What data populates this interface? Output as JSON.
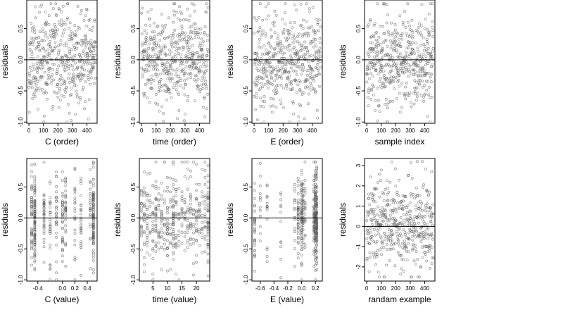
{
  "figure": {
    "background": "#ffffff",
    "point_color": "#555555",
    "line_color": "#000000"
  },
  "chart_data": [
    {
      "type": "scatter",
      "xlabel": "C (order)",
      "ylabel": "residuals",
      "xlim": [
        -15,
        470
      ],
      "ylim": [
        -1.02,
        0.96
      ],
      "xticks": [
        0,
        100,
        200,
        300,
        400
      ],
      "xticklabels": [
        "0",
        "100",
        "200",
        "300",
        "400"
      ],
      "yticks": [
        -1.0,
        -0.5,
        0.0,
        0.5
      ],
      "yticklabels": [
        "-1.0",
        "-0.5",
        "0.0",
        "0.5"
      ],
      "hline": 0,
      "n_points": 460,
      "x_pattern": "index",
      "y_min": -1.0,
      "y_max": 0.9,
      "seed": 11,
      "grid": false
    },
    {
      "type": "scatter",
      "xlabel": "time (order)",
      "ylabel": "residuals",
      "xlim": [
        -15,
        470
      ],
      "ylim": [
        -1.02,
        0.96
      ],
      "xticks": [
        0,
        100,
        200,
        300,
        400
      ],
      "xticklabels": [
        "0",
        "100",
        "200",
        "300",
        "400"
      ],
      "yticks": [
        -1.0,
        -0.5,
        0.0,
        0.5
      ],
      "yticklabels": [
        "-1.0",
        "-0.5",
        "0.0",
        "0.5"
      ],
      "hline": 0,
      "n_points": 460,
      "x_pattern": "index",
      "y_min": -1.0,
      "y_max": 0.9,
      "seed": 23,
      "grid": false
    },
    {
      "type": "scatter",
      "xlabel": "E (order)",
      "ylabel": "residuals",
      "xlim": [
        -15,
        470
      ],
      "ylim": [
        -1.02,
        0.96
      ],
      "xticks": [
        0,
        100,
        200,
        300,
        400
      ],
      "xticklabels": [
        "0",
        "100",
        "200",
        "300",
        "400"
      ],
      "yticks": [
        -1.0,
        -0.5,
        0.0,
        0.5
      ],
      "yticklabels": [
        "-1.0",
        "-0.5",
        "0.0",
        "0.5"
      ],
      "hline": 0,
      "n_points": 460,
      "x_pattern": "index",
      "y_min": -1.0,
      "y_max": 0.9,
      "seed": 37,
      "grid": false
    },
    {
      "type": "scatter",
      "xlabel": "sample index",
      "ylabel": "residuals",
      "xlim": [
        -15,
        470
      ],
      "ylim": [
        -1.02,
        0.96
      ],
      "xticks": [
        0,
        100,
        200,
        300,
        400
      ],
      "xticklabels": [
        "0",
        "100",
        "200",
        "300",
        "400"
      ],
      "yticks": [
        -1.0,
        -0.5,
        0.0,
        0.5
      ],
      "yticklabels": [
        "-1.0",
        "-0.5",
        "0.0",
        "0.5"
      ],
      "hline": 0,
      "n_points": 460,
      "x_pattern": "index",
      "y_min": -1.0,
      "y_max": 0.9,
      "seed": 41,
      "grid": false
    },
    {
      "type": "scatter",
      "xlabel": "C (value)",
      "ylabel": "residuals",
      "xlim": [
        -0.58,
        0.56
      ],
      "ylim": [
        -1.02,
        0.96
      ],
      "xticks": [
        -0.4,
        0.0,
        0.2,
        0.4
      ],
      "xticklabels": [
        "-0.4",
        "0.0",
        "0.2",
        "0.4"
      ],
      "yticks": [
        -1.0,
        -0.5,
        0.0,
        0.5
      ],
      "yticklabels": [
        "-1.0",
        "-0.5",
        "0.0",
        "0.5"
      ],
      "hline": 0,
      "n_points": 460,
      "x_pattern": "discrete",
      "x_levels": [
        -0.5,
        -0.45,
        -0.3,
        -0.2,
        -0.1,
        0.0,
        0.05,
        0.2,
        0.3,
        0.45,
        0.5
      ],
      "x_weights": [
        1,
        3,
        1,
        1,
        1,
        1,
        1,
        1,
        1,
        1,
        3
      ],
      "y_min": -1.0,
      "y_max": 0.9,
      "seed": 53,
      "grid": false
    },
    {
      "type": "scatter",
      "xlabel": "time (value)",
      "ylabel": "residuals",
      "xlim": [
        0.3,
        24.6
      ],
      "ylim": [
        -1.02,
        0.96
      ],
      "xticks": [
        5,
        10,
        15,
        20
      ],
      "xticklabels": [
        "5",
        "10",
        "15",
        "20"
      ],
      "yticks": [
        -1.0,
        -0.5,
        0.0,
        0.5
      ],
      "yticklabels": [
        "-1.0",
        "-0.5",
        "0.0",
        "0.5"
      ],
      "hline": 0,
      "n_points": 460,
      "x_pattern": "discrete",
      "x_levels": [
        1,
        2,
        3,
        4,
        5,
        6,
        7,
        8,
        9,
        10,
        11,
        12,
        13,
        14,
        15,
        16,
        17,
        18,
        19,
        20,
        21,
        22,
        23,
        24
      ],
      "x_weights": [
        1,
        1,
        1,
        1,
        1,
        1,
        1,
        1,
        1,
        1,
        1,
        3,
        1,
        1,
        1,
        1,
        1,
        1,
        1,
        1,
        1,
        1,
        1,
        2
      ],
      "y_min": -1.0,
      "y_max": 0.9,
      "seed": 67,
      "grid": false
    },
    {
      "type": "scatter",
      "xlabel": "E (value)",
      "ylabel": "residuals",
      "xlim": [
        -0.72,
        0.3
      ],
      "ylim": [
        -1.02,
        0.96
      ],
      "xticks": [
        -0.6,
        -0.4,
        -0.2,
        0.0,
        0.2
      ],
      "xticklabels": [
        "-0.6",
        "-0.4",
        "-0.2",
        "0.0",
        "0.2"
      ],
      "yticks": [
        -1.0,
        -0.5,
        0.0,
        0.5
      ],
      "yticklabels": [
        "-1.0",
        "-0.5",
        "0.0",
        "0.5"
      ],
      "hline": 0,
      "n_points": 460,
      "x_pattern": "discrete",
      "x_levels": [
        -0.68,
        -0.6,
        -0.5,
        -0.3,
        -0.1,
        -0.05,
        0.0,
        0.02,
        0.05,
        0.18,
        0.2,
        0.22
      ],
      "x_weights": [
        2,
        1,
        1,
        1,
        1,
        2,
        4,
        2,
        1,
        4,
        6,
        4
      ],
      "y_min": -1.0,
      "y_max": 0.9,
      "seed": 79,
      "grid": false
    },
    {
      "type": "scatter",
      "xlabel": "randam example",
      "ylabel": "residuals",
      "xlim": [
        -15,
        470
      ],
      "ylim": [
        -2.7,
        3.35
      ],
      "xticks": [
        0,
        100,
        200,
        300,
        400
      ],
      "xticklabels": [
        "0",
        "100",
        "200",
        "300",
        "400"
      ],
      "yticks": [
        -2,
        -1,
        0,
        1,
        2,
        3
      ],
      "yticklabels": [
        "-2",
        "-1",
        "0",
        "1",
        "2",
        "3"
      ],
      "hline": 0,
      "n_points": 460,
      "x_pattern": "index",
      "y_min": -2.5,
      "y_max": 3.2,
      "seed": 97,
      "grid": false
    }
  ]
}
